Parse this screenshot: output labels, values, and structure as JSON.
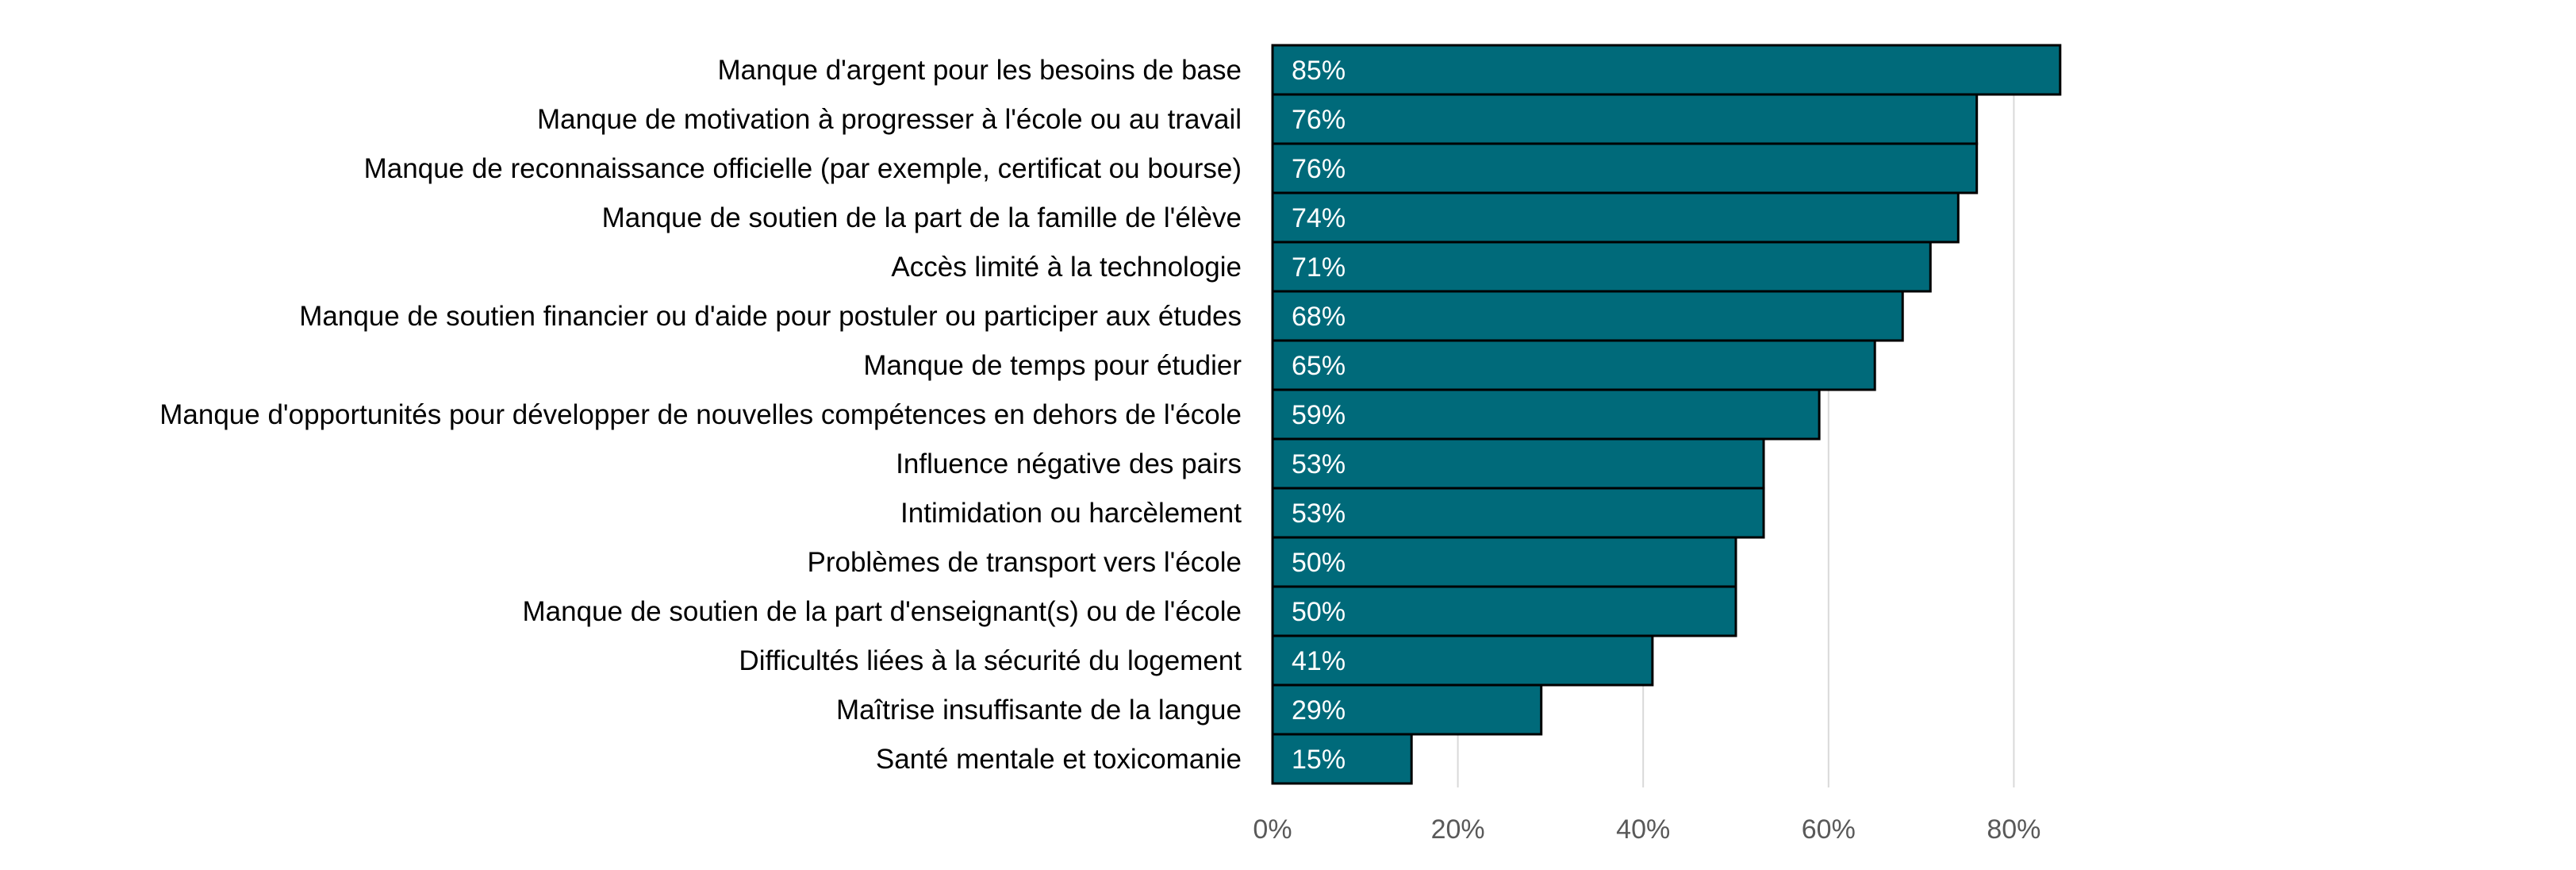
{
  "chart_data": {
    "type": "bar",
    "orientation": "horizontal",
    "categories": [
      "Manque d'argent pour les besoins de base",
      "Manque de motivation à progresser à l'école ou au travail",
      "Manque de reconnaissance officielle (par exemple, certificat ou bourse)",
      "Manque de soutien de la part de la famille de l'élève",
      "Accès limité à la technologie",
      "Manque de soutien financier ou d'aide pour postuler ou participer aux études",
      "Manque de temps pour étudier",
      "Manque d'opportunités pour développer de nouvelles compétences en dehors de l'école",
      "Influence négative des pairs",
      "Intimidation ou harcèlement",
      "Problèmes de transport vers l'école",
      "Manque de soutien de la part d'enseignant(s) ou de l'école",
      "Difficultés liées à la sécurité du logement",
      "Maîtrise insuffisante de la langue",
      "Santé mentale et toxicomanie"
    ],
    "values": [
      85,
      76,
      76,
      74,
      71,
      68,
      65,
      59,
      53,
      53,
      50,
      50,
      41,
      29,
      15
    ],
    "value_labels": [
      "85%",
      "76%",
      "76%",
      "74%",
      "71%",
      "68%",
      "65%",
      "59%",
      "53%",
      "53%",
      "50%",
      "50%",
      "41%",
      "29%",
      "15%"
    ],
    "xlim": [
      0,
      85
    ],
    "x_ticks": [
      0,
      20,
      40,
      60,
      80
    ],
    "x_tick_labels": [
      "0%",
      "20%",
      "40%",
      "60%",
      "80%"
    ],
    "grid": "vertical",
    "legend": "none",
    "title": "",
    "xlabel": "",
    "ylabel": "",
    "colors": {
      "bar": "#006A7A",
      "bar_edge": "#000000",
      "grid": "#D9D9D9",
      "tick_text": "#595959"
    }
  }
}
